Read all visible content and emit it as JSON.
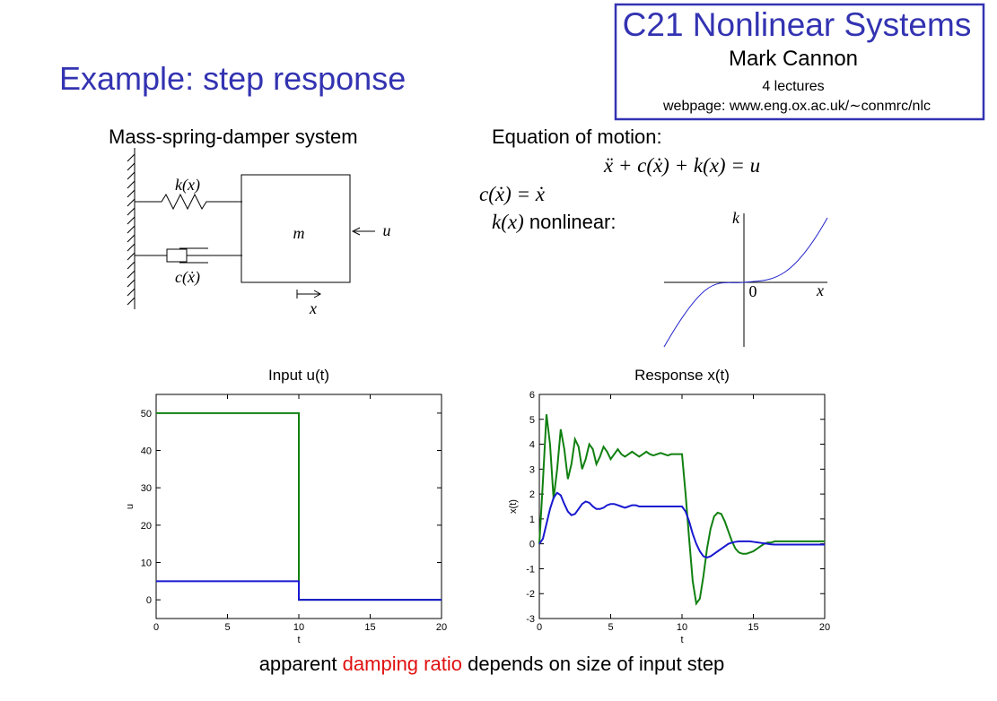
{
  "header": {
    "title": "Example: step response",
    "course": "C21 Nonlinear Systems",
    "author": "Mark Cannon",
    "lectures": "4 lectures",
    "webpage": "webpage: www.eng.ox.ac.uk/∼conmrc/nlc"
  },
  "diagram": {
    "title": "Mass-spring-damper system",
    "spring": "k(x)",
    "damper": "c(ẋ)",
    "mass": "m",
    "input": "u",
    "displacement": "x"
  },
  "equation": {
    "title": "Equation of motion:",
    "motion": "ẍ + c(ẋ) + k(x) = u",
    "damping": "c(ẋ) = ẋ",
    "stiffness": "k(x)",
    "stiffness_note": " nonlinear:",
    "plot_y": "k",
    "plot_origin": "0",
    "plot_x": "x"
  },
  "chart_data": [
    {
      "type": "line",
      "title": "Input u(t)",
      "x_label": "t",
      "y_label": "u",
      "x": [
        0,
        10,
        10,
        20
      ],
      "series": [
        {
          "color": "#108010",
          "values": [
            50,
            50,
            0,
            0
          ]
        },
        {
          "color": "#1818d0",
          "values": [
            5,
            5,
            0,
            0
          ]
        }
      ],
      "xlim": [
        0,
        20
      ],
      "xticks": [
        0,
        5,
        10,
        15,
        20
      ],
      "ylim": [
        -5,
        55
      ],
      "yticks": [
        0,
        10,
        20,
        30,
        40,
        50
      ],
      "grid": false
    },
    {
      "type": "line",
      "title": "Response x(t)",
      "x_label": "t",
      "y_label": "x(t)",
      "x": [
        0,
        0.25,
        0.5,
        0.75,
        1,
        1.25,
        1.5,
        1.75,
        2,
        2.25,
        2.5,
        2.75,
        3,
        3.25,
        3.5,
        3.75,
        4,
        4.25,
        4.5,
        4.75,
        5,
        5.25,
        5.5,
        5.75,
        6,
        6.25,
        6.5,
        6.75,
        7,
        7.25,
        7.5,
        7.75,
        8,
        8.25,
        8.5,
        8.75,
        9,
        9.25,
        9.5,
        9.75,
        10,
        10.25,
        10.5,
        10.75,
        11,
        11.25,
        11.5,
        11.75,
        12,
        12.25,
        12.5,
        12.75,
        13,
        13.25,
        13.5,
        13.75,
        14,
        14.25,
        14.5,
        14.75,
        15,
        15.25,
        15.5,
        15.75,
        16,
        16.25,
        16.5,
        16.75,
        17,
        17.25,
        17.5,
        17.75,
        18,
        18.25,
        18.5,
        18.75,
        19,
        19.25,
        19.5,
        19.75,
        20
      ],
      "series": [
        {
          "color": "#108010",
          "values": [
            0,
            2.5,
            5.2,
            4.0,
            1.8,
            3.0,
            4.6,
            3.8,
            2.6,
            3.2,
            4.2,
            3.9,
            3.0,
            3.4,
            4.0,
            3.8,
            3.2,
            3.5,
            3.9,
            3.7,
            3.4,
            3.6,
            3.8,
            3.6,
            3.5,
            3.6,
            3.7,
            3.6,
            3.5,
            3.6,
            3.7,
            3.6,
            3.55,
            3.6,
            3.65,
            3.6,
            3.55,
            3.6,
            3.6,
            3.6,
            3.6,
            2.0,
            0.2,
            -1.5,
            -2.4,
            -2.2,
            -1.3,
            -0.2,
            0.6,
            1.1,
            1.25,
            1.2,
            0.9,
            0.5,
            0.1,
            -0.2,
            -0.35,
            -0.4,
            -0.4,
            -0.35,
            -0.3,
            -0.2,
            -0.1,
            0.0,
            0.05,
            0.05,
            0.1,
            0.1,
            0.1,
            0.1,
            0.1,
            0.1,
            0.1,
            0.1,
            0.1,
            0.1,
            0.1,
            0.1,
            0.1,
            0.1,
            0.1
          ]
        },
        {
          "color": "#1818d0",
          "values": [
            0,
            0.2,
            0.8,
            1.4,
            1.85,
            2.05,
            1.95,
            1.6,
            1.3,
            1.15,
            1.2,
            1.4,
            1.6,
            1.7,
            1.65,
            1.5,
            1.4,
            1.4,
            1.45,
            1.55,
            1.6,
            1.6,
            1.55,
            1.5,
            1.45,
            1.5,
            1.55,
            1.55,
            1.5,
            1.5,
            1.5,
            1.5,
            1.5,
            1.5,
            1.5,
            1.5,
            1.5,
            1.5,
            1.5,
            1.5,
            1.5,
            1.3,
            0.9,
            0.4,
            0.0,
            -0.3,
            -0.5,
            -0.55,
            -0.5,
            -0.4,
            -0.3,
            -0.2,
            -0.1,
            0.0,
            0.05,
            0.08,
            0.1,
            0.1,
            0.1,
            0.1,
            0.08,
            0.06,
            0.04,
            0.02,
            0.0,
            -0.02,
            -0.03,
            -0.03,
            -0.03,
            -0.03,
            -0.03,
            -0.03,
            -0.03,
            -0.03,
            -0.03,
            -0.03,
            -0.03,
            -0.03,
            -0.03,
            -0.03,
            -0.03
          ]
        }
      ],
      "xlim": [
        0,
        20
      ],
      "xticks": [
        0,
        5,
        10,
        15,
        20
      ],
      "ylim": [
        -3,
        6
      ],
      "yticks": [
        -3,
        -2,
        -1,
        0,
        1,
        2,
        3,
        4,
        5,
        6
      ],
      "grid": false
    }
  ],
  "caption": {
    "before": "apparent ",
    "highlight": "damping ratio",
    "after": " depends on size of input step"
  }
}
